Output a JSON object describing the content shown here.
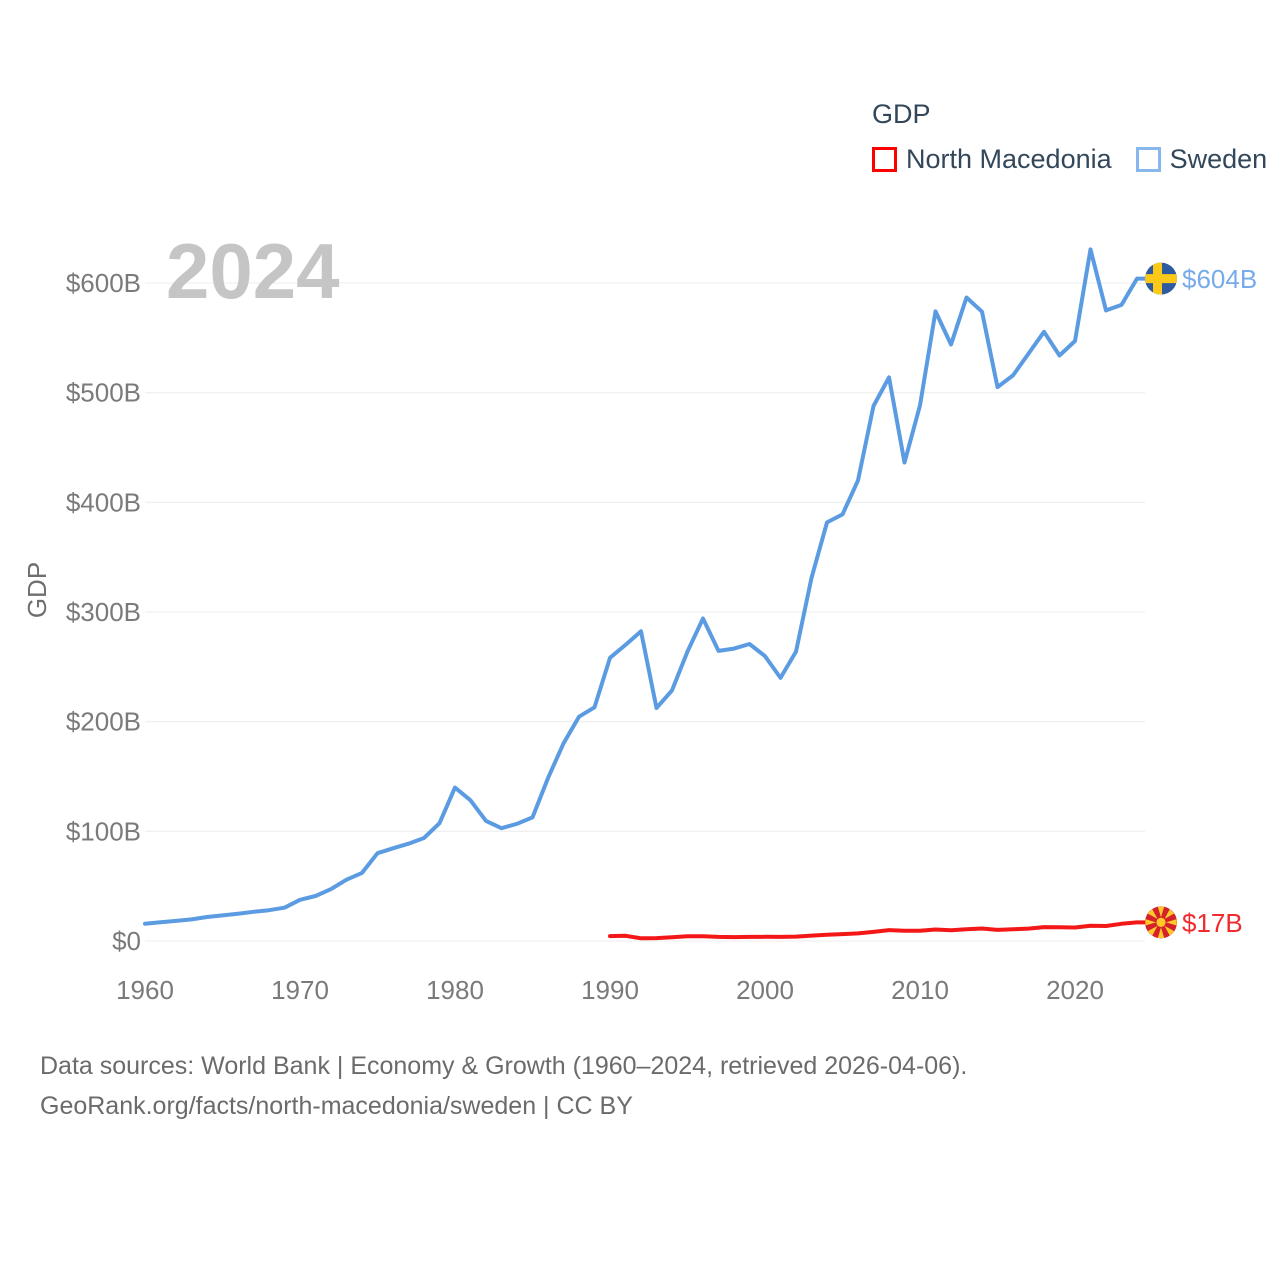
{
  "watermark": "2024",
  "legend": {
    "title": "GDP",
    "items": [
      {
        "label": "North Macedonia",
        "color": "#ff0000"
      },
      {
        "label": "Sweden",
        "color": "#87b7ec"
      }
    ]
  },
  "chart_data": {
    "type": "line",
    "title": "GDP",
    "xlabel": "",
    "ylabel": "GDP",
    "xlim": [
      1960,
      2024
    ],
    "ylim": [
      0,
      650
    ],
    "grid": true,
    "legend_position": "top-right",
    "yticks": [
      {
        "value": 0,
        "label": "$0"
      },
      {
        "value": 100,
        "label": "$100B"
      },
      {
        "value": 200,
        "label": "$200B"
      },
      {
        "value": 300,
        "label": "$300B"
      },
      {
        "value": 400,
        "label": "$400B"
      },
      {
        "value": 500,
        "label": "$500B"
      },
      {
        "value": 600,
        "label": "$600B"
      }
    ],
    "xticks": [
      {
        "value": 1960,
        "label": "1960"
      },
      {
        "value": 1970,
        "label": "1970"
      },
      {
        "value": 1980,
        "label": "1980"
      },
      {
        "value": 1990,
        "label": "1990"
      },
      {
        "value": 2000,
        "label": "2000"
      },
      {
        "value": 2010,
        "label": "2010"
      },
      {
        "value": 2020,
        "label": "2020"
      }
    ],
    "series": [
      {
        "name": "Sweden",
        "start_year": 1960,
        "unit": "billion USD",
        "line_color": "#5b9be2",
        "label_color": "#77abe9",
        "end_label": "$604B",
        "flag": "sweden",
        "flag_colors": {
          "bg": "#2e5ba0",
          "cross": "#fdc918"
        },
        "values": [
          15.8,
          17.1,
          18.3,
          19.7,
          21.9,
          23.3,
          24.9,
          26.6,
          28.1,
          30.4,
          37.6,
          41.0,
          47.3,
          55.9,
          62.1,
          80.1,
          84.5,
          88.7,
          93.9,
          107.4,
          139.9,
          128.3,
          109.5,
          102.9,
          106.9,
          112.7,
          148.5,
          180.2,
          204.5,
          213.1,
          258.2,
          270.0,
          282.4,
          212.5,
          228.5,
          264.0,
          294.1,
          264.5,
          266.6,
          270.8,
          259.8,
          239.9,
          263.9,
          331.1,
          381.7,
          389.0,
          420.0,
          487.8,
          513.9,
          436.3,
          488.4,
          574.1,
          543.9,
          586.8,
          573.8,
          505.1,
          515.7,
          535.6,
          555.5,
          533.9,
          547.1,
          630.6,
          575.0,
          580.0,
          604.0
        ]
      },
      {
        "name": "North Macedonia",
        "start_year": 1990,
        "unit": "billion USD",
        "line_color": "#f31717",
        "label_color": "#ef2b2f",
        "end_label": "$17B",
        "flag": "north-macedonia",
        "flag_colors": {
          "bg": "#d3222b",
          "sun": "#ffc929"
        },
        "values": [
          4.5,
          4.7,
          2.5,
          2.6,
          3.4,
          4.4,
          4.4,
          3.7,
          3.6,
          3.7,
          3.8,
          3.7,
          4.0,
          4.9,
          5.7,
          6.3,
          6.9,
          8.3,
          9.9,
          9.4,
          9.4,
          10.5,
          9.8,
          10.8,
          11.4,
          10.1,
          10.7,
          11.3,
          12.7,
          12.5,
          12.3,
          13.9,
          13.7,
          15.7,
          17.0
        ]
      }
    ]
  },
  "footer": {
    "line1": "Data sources: World Bank | Economy & Growth (1960–2024, retrieved 2026-04-06).",
    "line2": "GeoRank.org/facts/north-macedonia/sweden | CC BY"
  }
}
